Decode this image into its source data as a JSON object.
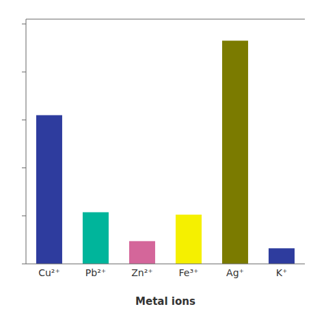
{
  "chart_data": {
    "type": "bar",
    "xlabel": "Metal ions",
    "categories": [
      "Cu²⁺",
      "Pb²⁺",
      "Zn²⁺",
      "Fe³⁺",
      "Ag⁺",
      "K⁺"
    ],
    "values": [
      0.62,
      0.215,
      0.095,
      0.205,
      0.93,
      0.065
    ],
    "colors": [
      "#2E3C9E",
      "#00B59B",
      "#D4669A",
      "#F5F000",
      "#7B7B00",
      "#2E3C9E"
    ],
    "ylim": [
      0,
      1.02
    ],
    "yticks": [
      0.0,
      0.2,
      0.4,
      0.6,
      0.8,
      1.0
    ],
    "tick_labels": "x"
  }
}
